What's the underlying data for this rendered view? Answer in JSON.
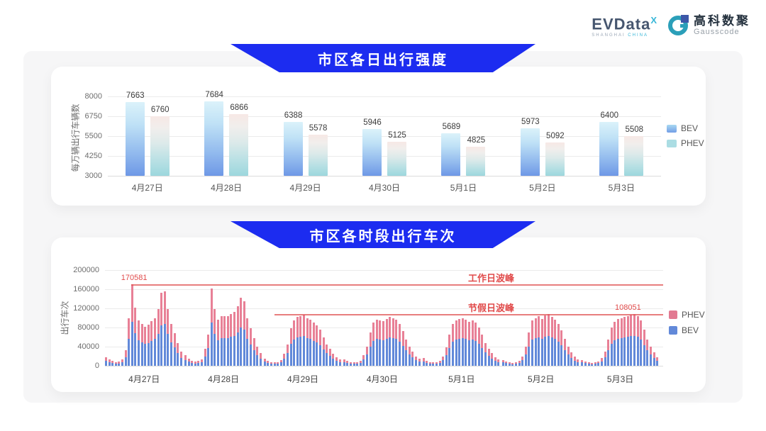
{
  "header": {
    "evdata_logo": {
      "text": "EVData",
      "sup": "X",
      "tagline_left": "SHANGHAI",
      "tagline_right": "CHINA"
    },
    "gausscode_logo": {
      "cn": "高科数聚",
      "en": "Gausscode"
    }
  },
  "banners": [
    {
      "title": "市区各日出行强度"
    },
    {
      "title": "市区各时段出行车次"
    }
  ],
  "colors": {
    "banner_blue": "#1c2cf0",
    "bev_blue": "#6289d9",
    "phev_pink": "#e88096",
    "annotation_red": "#e14b4b",
    "panel_gray": "#f6f6f7"
  },
  "chart_data": [
    {
      "type": "bar",
      "title": "市区各日出行强度",
      "ylabel": "每万辆出行车辆数",
      "categories": [
        "4月27日",
        "4月28日",
        "4月29日",
        "4月30日",
        "5月1日",
        "5月2日",
        "5月3日"
      ],
      "series": [
        {
          "name": "BEV",
          "values": [
            7663,
            7684,
            6388,
            5946,
            5689,
            5973,
            6400
          ]
        },
        {
          "name": "PHEV",
          "values": [
            6760,
            6866,
            5578,
            5125,
            4825,
            5092,
            5508
          ]
        }
      ],
      "ylim": [
        3000,
        8000
      ],
      "yticks": [
        3000,
        4250,
        5500,
        6750,
        8000
      ],
      "grid": true,
      "legend_position": "right"
    },
    {
      "type": "bar",
      "stacked": true,
      "title": "市区各时段出行车次",
      "ylabel": "出行车次",
      "categories": [
        "4月27日",
        "4月28日",
        "4月29日",
        "4月30日",
        "5月1日",
        "5月2日",
        "5月3日"
      ],
      "ylim": [
        0,
        200000
      ],
      "yticks": [
        0,
        40000,
        80000,
        120000,
        160000,
        200000
      ],
      "grid": true,
      "legend_position": "right",
      "series": [
        {
          "name": "PHEV"
        },
        {
          "name": "BEV"
        }
      ],
      "annotations": {
        "workday_peak": {
          "label": "工作日波峰",
          "value": 170581
        },
        "holiday_peak": {
          "label": "节假日波峰",
          "value": 108051
        }
      },
      "days": [
        {
          "date": "4月27日",
          "bev": [
            10000,
            7300,
            5600,
            4500,
            5000,
            7300,
            18000,
            56000,
            92000,
            68000,
            53000,
            49000,
            46000,
            48000,
            52000,
            56000,
            66000,
            85000,
            87000,
            66000,
            49000,
            38000,
            27000,
            17000
          ],
          "phev": [
            8000,
            5700,
            4400,
            3500,
            4000,
            5700,
            14000,
            44000,
            78581,
            54000,
            42000,
            39000,
            36000,
            38000,
            41000,
            44000,
            52000,
            67000,
            68000,
            52000,
            39000,
            30000,
            21000,
            13000
          ]
        },
        {
          "date": "4月28日",
          "bev": [
            12300,
            8400,
            6200,
            5000,
            5600,
            7800,
            19600,
            36400,
            90700,
            66100,
            53800,
            57700,
            58200,
            58200,
            60500,
            62700,
            70000,
            79500,
            75600,
            56000,
            43700,
            32500,
            22400,
            14600
          ],
          "phev": [
            9700,
            6600,
            4800,
            4000,
            4400,
            6200,
            15400,
            28600,
            71300,
            51900,
            42200,
            45300,
            45800,
            45800,
            47500,
            49300,
            55000,
            62500,
            59400,
            44000,
            34300,
            25500,
            17600,
            11400
          ]
        },
        {
          "date": "4月29日",
          "bev": [
            8700,
            5800,
            4600,
            4100,
            4600,
            7000,
            14500,
            26100,
            45200,
            55100,
            59200,
            60300,
            62100,
            58000,
            55700,
            52200,
            49300,
            43500,
            34800,
            26100,
            20300,
            14500,
            10400,
            8100
          ],
          "phev": [
            6300,
            4200,
            3400,
            2900,
            3400,
            5000,
            10500,
            18900,
            32800,
            39900,
            42800,
            43700,
            44900,
            42000,
            40300,
            37800,
            35700,
            31500,
            25200,
            18900,
            14700,
            10500,
            7600,
            5900
          ]
        },
        {
          "date": "4月30日",
          "bev": [
            8100,
            5800,
            4600,
            4100,
            4600,
            6400,
            12800,
            23200,
            40600,
            52200,
            56300,
            55100,
            53900,
            56800,
            59200,
            58000,
            55700,
            51000,
            41800,
            31900,
            23200,
            17400,
            11600,
            8700
          ],
          "phev": [
            5900,
            4200,
            3400,
            2900,
            3400,
            4600,
            9200,
            16800,
            29400,
            37800,
            40700,
            39900,
            39100,
            41200,
            42800,
            42000,
            40300,
            37000,
            30200,
            23100,
            16800,
            12600,
            8400,
            6300
          ]
        },
        {
          "date": "5月1日",
          "bev": [
            9300,
            6400,
            4600,
            4100,
            4600,
            6400,
            11600,
            22000,
            37700,
            51000,
            55100,
            56800,
            58000,
            55700,
            53400,
            55100,
            52200,
            46400,
            37700,
            27800,
            20900,
            15100,
            10400,
            7500
          ],
          "phev": [
            6700,
            4600,
            3400,
            2900,
            3400,
            4600,
            8400,
            16000,
            27300,
            37000,
            39900,
            41200,
            42000,
            40300,
            38600,
            39900,
            37800,
            33600,
            27300,
            20200,
            15100,
            10900,
            7600,
            5500
          ]
        },
        {
          "date": "5月2日",
          "bev": [
            7000,
            5200,
            4100,
            3500,
            4100,
            5800,
            11600,
            23200,
            40600,
            55100,
            58000,
            59700,
            56800,
            60900,
            62600,
            59200,
            55700,
            51000,
            42900,
            32500,
            23200,
            16200,
            11000,
            8100
          ],
          "phev": [
            5000,
            3800,
            2900,
            2500,
            2900,
            4200,
            8400,
            16800,
            29400,
            39900,
            42000,
            43300,
            41200,
            44100,
            45400,
            42800,
            40300,
            37000,
            31100,
            23500,
            16800,
            11800,
            8000,
            5900
          ]
        },
        {
          "date": "5月3日",
          "bev": [
            7000,
            5200,
            4100,
            3500,
            4100,
            5200,
            9300,
            17400,
            31900,
            46400,
            53400,
            56800,
            58000,
            59200,
            60300,
            61500,
            62000,
            60300,
            55100,
            43500,
            31900,
            23200,
            16200,
            10400
          ],
          "phev": [
            5000,
            3800,
            2900,
            2500,
            2900,
            3800,
            6700,
            12600,
            23100,
            33600,
            38600,
            41200,
            42000,
            42800,
            43700,
            44500,
            46051,
            43700,
            39900,
            31500,
            23100,
            16800,
            11800,
            7600
          ]
        }
      ]
    }
  ]
}
